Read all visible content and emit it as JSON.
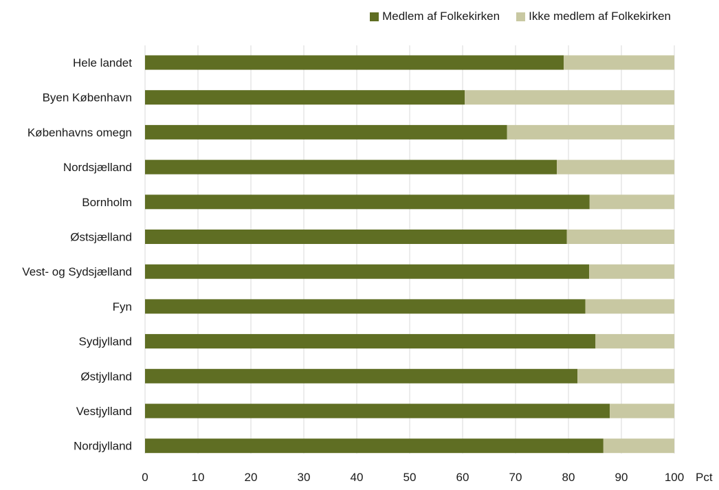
{
  "chart_data": {
    "type": "bar",
    "orientation": "horizontal",
    "stacked": true,
    "categories": [
      "Hele landet",
      "Byen København",
      "Københavns omegn",
      "Nordsjælland",
      "Bornholm",
      "Østsjælland",
      "Vest- og Sydsjælland",
      "Fyn",
      "Sydjylland",
      "Østjylland",
      "Vestjylland",
      "Nordjylland"
    ],
    "series": [
      {
        "name": "Medlem af Folkekirken",
        "color": "#5f6e23",
        "values": [
          79.1,
          60.4,
          68.4,
          77.8,
          84.0,
          79.7,
          83.9,
          83.2,
          85.1,
          81.7,
          87.8,
          86.6
        ]
      },
      {
        "name": "Ikke medlem af Folkekirken",
        "color": "#c8c8a2",
        "values": [
          20.9,
          39.6,
          31.6,
          22.2,
          16.0,
          20.3,
          16.1,
          16.8,
          14.9,
          18.3,
          12.2,
          13.4
        ]
      }
    ],
    "xlim": [
      0,
      100
    ],
    "xticks": [
      "0",
      "10",
      "20",
      "30",
      "40",
      "50",
      "60",
      "70",
      "80",
      "90",
      "100"
    ],
    "xunit": "Pct",
    "grid": true,
    "legend_position": "top-right"
  }
}
